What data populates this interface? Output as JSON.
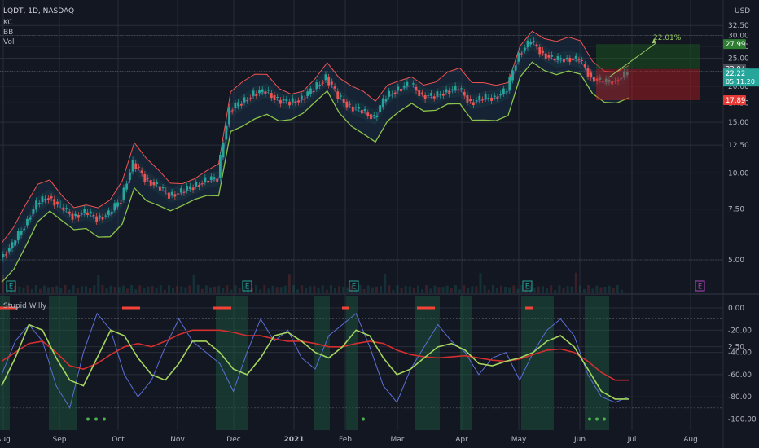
{
  "header": {
    "symbol_line": "LQDT, 1D, NASDAQ",
    "indicators": [
      "KC",
      "BB",
      "Vol"
    ],
    "currency": "USD"
  },
  "oscillator": {
    "title": "Stupid Willy"
  },
  "colors": {
    "bg": "#131722",
    "grid": "#2a2e39",
    "up": "#26a69a",
    "down": "#ef5350",
    "bb_lower": "#8bc34a",
    "kc_upper": "#ef5350",
    "osc_fast": "#5b6fd6",
    "osc_green": "#4caf50",
    "osc_red": "#d32f2f",
    "target_green": "#1b5e20",
    "stop_red": "#b71c1c"
  },
  "chart_data": [
    {
      "type": "line",
      "title": "LQDT, 1D, NASDAQ",
      "ylabel": "USD",
      "y_scale": "log",
      "ylim": [
        2.2,
        33
      ],
      "x_ticks": [
        "Aug",
        "Sep",
        "Oct",
        "Nov",
        "Dec",
        "2021",
        "Feb",
        "Mar",
        "Apr",
        "May",
        "Jun",
        "Jul",
        "Aug"
      ],
      "y_ticks": [
        "32.50",
        "30.00",
        "27.50",
        "25.00",
        "22.50",
        "20.00",
        "17.50",
        "15.00",
        "12.50",
        "10.00",
        "7.50",
        "5.00",
        "2.50"
      ],
      "series": [
        {
          "name": "",
          "values": [
            5.1,
            5.6,
            6.6,
            7.8,
            8.3,
            7.6,
            7.1,
            7.3,
            7.0,
            7.2,
            8.1,
            10.8,
            9.6,
            9.0,
            8.4,
            8.6,
            9.0,
            9.4,
            9.6,
            16.5,
            17.6,
            18.8,
            19.3,
            17.9,
            17.6,
            18.1,
            19.6,
            21.5,
            18.4,
            17.0,
            16.4,
            15.6,
            18.4,
            19.6,
            20.3,
            18.6,
            18.4,
            19.3,
            19.6,
            17.6,
            18.1,
            18.4,
            19.3,
            26.0,
            28.6,
            26.0,
            24.6,
            25.1,
            24.6,
            21.5,
            20.6,
            21.0,
            22.2
          ]
        }
      ],
      "annotations": {
        "last_price": "22.94",
        "current_price": "22.22",
        "countdown": "05:11:20",
        "target_price": "27.99",
        "stop_price": "17.89",
        "target_pct": "22.01%",
        "earnings_marker": "E"
      }
    },
    {
      "type": "line",
      "title": "Stupid Willy",
      "ylim": [
        -105,
        5
      ],
      "y_ticks": [
        "0.00",
        "-20.00",
        "-40.00",
        "-60.00",
        "-80.00",
        "-100.00"
      ],
      "series": [
        {
          "name": "",
          "values": [
            -60,
            -30,
            -15,
            -30,
            -70,
            -90,
            -40,
            -5,
            -20,
            -60,
            -80,
            -65,
            -35,
            -10,
            -30,
            -40,
            -50,
            -75,
            -40,
            -10,
            -30,
            -20,
            -45,
            -55,
            -25,
            -15,
            -5,
            -35,
            -70,
            -85,
            -55,
            -35,
            -15,
            -30,
            -40,
            -60,
            -45,
            -40,
            -65,
            -40,
            -20,
            -10,
            -25,
            -60,
            -80,
            -85,
            -80
          ]
        },
        {
          "name": "",
          "values": [
            -70,
            -45,
            -15,
            -20,
            -45,
            -65,
            -70,
            -45,
            -20,
            -25,
            -45,
            -60,
            -65,
            -50,
            -30,
            -30,
            -40,
            -55,
            -60,
            -45,
            -25,
            -22,
            -30,
            -40,
            -45,
            -35,
            -20,
            -25,
            -45,
            -60,
            -55,
            -45,
            -35,
            -32,
            -38,
            -50,
            -52,
            -48,
            -45,
            -40,
            -30,
            -25,
            -35,
            -55,
            -75,
            -82,
            -82
          ]
        },
        {
          "name": "",
          "values": [
            -48,
            -40,
            -32,
            -30,
            -40,
            -52,
            -55,
            -50,
            -42,
            -35,
            -32,
            -35,
            -30,
            -24,
            -20,
            -20,
            -20,
            -22,
            -25,
            -25,
            -28,
            -30,
            -30,
            -32,
            -35,
            -35,
            -32,
            -30,
            -32,
            -38,
            -42,
            -44,
            -45,
            -44,
            -43,
            -45,
            -47,
            -48,
            -46,
            -42,
            -38,
            -37,
            -40,
            -48,
            -58,
            -65,
            -65
          ]
        }
      ],
      "shading": "green columns where the oscillator is near 0, dots at 0 and -100"
    }
  ]
}
